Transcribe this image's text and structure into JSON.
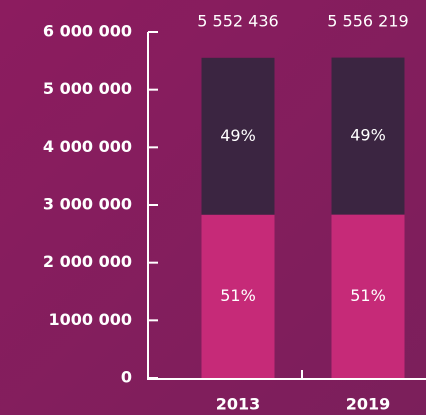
{
  "chart_data": {
    "type": "stacked_bar",
    "categories": [
      "2013",
      "2019"
    ],
    "series": [
      {
        "color": "#c62a78",
        "values": [
          2831742,
          2833672
        ],
        "labels": [
          "51%",
          "51%"
        ]
      },
      {
        "color": "#3b2541",
        "values": [
          2720694,
          2722547
        ],
        "labels": [
          "49%",
          "49%"
        ]
      }
    ],
    "totals": [
      5552436,
      5556219
    ],
    "total_labels": [
      "5 552 436",
      "5 556 219"
    ],
    "ylim": [
      0,
      6000000
    ],
    "yticks": [
      0,
      {
        "value": 1000000,
        "label": "1000 000"
      },
      {
        "value": 2000000,
        "label": "2 000 000"
      },
      {
        "value": 3000000,
        "label": "3 000 000"
      },
      {
        "value": 4000000,
        "label": "4 000 000"
      },
      {
        "value": 5000000,
        "label": "5 000 000"
      },
      {
        "value": 6000000,
        "label": "6 000 000"
      }
    ]
  }
}
